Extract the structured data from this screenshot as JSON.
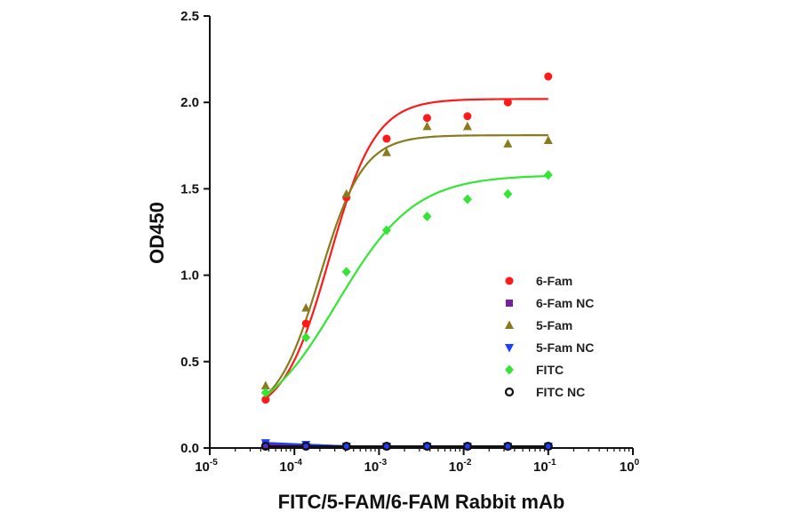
{
  "chart_data": {
    "type": "scatter",
    "title": "",
    "xlabel": "FITC/5-FAM/6-FAM Rabbit mAb",
    "ylabel": "OD450",
    "xscale": "log",
    "xlim": [
      1e-05,
      1
    ],
    "ylim": [
      0,
      2.5
    ],
    "x_ticks": [
      {
        "base": "10",
        "exp": "-5",
        "value": 1e-05
      },
      {
        "base": "10",
        "exp": "-4",
        "value": 0.0001
      },
      {
        "base": "10",
        "exp": "-3",
        "value": 0.001
      },
      {
        "base": "10",
        "exp": "-2",
        "value": 0.01
      },
      {
        "base": "10",
        "exp": "-1",
        "value": 0.1
      },
      {
        "base": "10",
        "exp": "0",
        "value": 1
      }
    ],
    "y_ticks": [
      "0.0",
      "0.5",
      "1.0",
      "1.5",
      "2.0",
      "2.5"
    ],
    "legend_position": "lower-right",
    "grid": false,
    "x": [
      4.57e-05,
      0.000137,
      0.000412,
      0.00123,
      0.0037,
      0.0111,
      0.0333,
      0.1
    ],
    "series": [
      {
        "name": "6-Fam",
        "color": "#ff1a1a",
        "marker": "circle",
        "values": [
          0.28,
          0.72,
          1.45,
          1.79,
          1.91,
          1.92,
          2.0,
          2.15
        ],
        "fit": {
          "bottom": 0.18,
          "top": 2.02,
          "ec50": 0.00026,
          "hill": 1.6
        }
      },
      {
        "name": "6-Fam NC",
        "color": "#7b1fa2",
        "marker": "square",
        "values": [
          0.02,
          0.02,
          0.01,
          0.01,
          0.01,
          0.01,
          0.01,
          0.01
        ]
      },
      {
        "name": "5-Fam",
        "color": "#8a7a1e",
        "marker": "triangle-up",
        "values": [
          0.36,
          0.81,
          1.47,
          1.71,
          1.86,
          1.86,
          1.76,
          1.78
        ],
        "fit": {
          "bottom": 0.18,
          "top": 1.81,
          "ec50": 0.0002,
          "hill": 1.7
        }
      },
      {
        "name": "5-Fam NC",
        "color": "#1a3fff",
        "marker": "triangle-down",
        "values": [
          0.03,
          0.02,
          0.01,
          0.01,
          0.01,
          0.01,
          0.01,
          0.01
        ]
      },
      {
        "name": "FITC",
        "color": "#33e633",
        "marker": "diamond",
        "values": [
          0.32,
          0.64,
          1.02,
          1.26,
          1.34,
          1.44,
          1.47,
          1.58
        ],
        "fit": {
          "bottom": 0.1,
          "top": 1.58,
          "ec50": 0.00032,
          "hill": 0.95
        }
      },
      {
        "name": "FITC NC",
        "color": "#111111",
        "marker": "open-circle",
        "values": [
          0.01,
          0.01,
          0.01,
          0.01,
          0.01,
          0.01,
          0.01,
          0.01
        ]
      }
    ]
  }
}
